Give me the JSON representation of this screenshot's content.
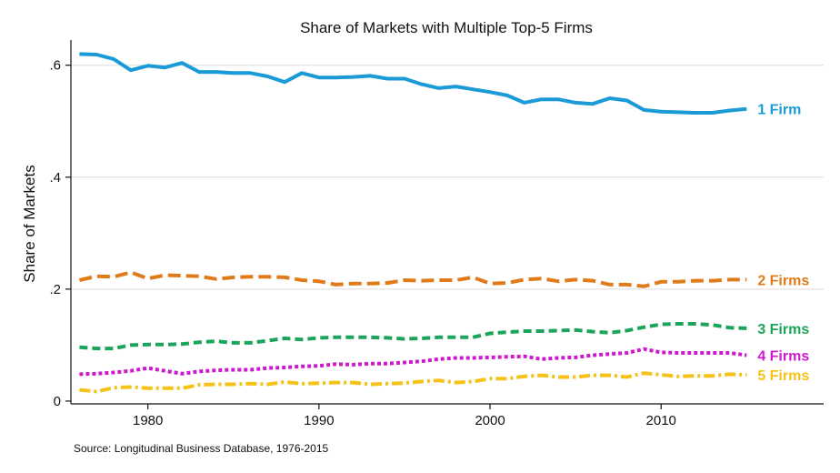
{
  "chart_data": {
    "type": "line",
    "title": "Share of Markets with Multiple Top-5 Firms",
    "xlabel": "",
    "ylabel": "Share of Markets",
    "xlim": [
      1975.5,
      2019.5
    ],
    "ylim": [
      -0.005,
      0.645
    ],
    "xticks": [
      1980,
      1990,
      2000,
      2010
    ],
    "xtick_labels": [
      "1980",
      "1990",
      "2000",
      "2010"
    ],
    "yticks": [
      0,
      0.2,
      0.4,
      0.6
    ],
    "ytick_labels": [
      "0",
      ".2",
      ".4",
      ".6"
    ],
    "grid": "horizontal",
    "x": [
      1976,
      1977,
      1978,
      1979,
      1980,
      1981,
      1982,
      1983,
      1984,
      1985,
      1986,
      1987,
      1988,
      1989,
      1990,
      1991,
      1992,
      1993,
      1994,
      1995,
      1996,
      1997,
      1998,
      1999,
      2000,
      2001,
      2002,
      2003,
      2004,
      2005,
      2006,
      2007,
      2008,
      2009,
      2010,
      2011,
      2012,
      2013,
      2014,
      2015
    ],
    "series": [
      {
        "name": "1 Firm",
        "color": "#1a9ad6",
        "dash": "solid",
        "values": [
          0.62,
          0.619,
          0.611,
          0.591,
          0.599,
          0.596,
          0.604,
          0.588,
          0.588,
          0.586,
          0.586,
          0.58,
          0.57,
          0.586,
          0.578,
          0.578,
          0.579,
          0.581,
          0.576,
          0.576,
          0.566,
          0.559,
          0.562,
          0.557,
          0.552,
          0.546,
          0.533,
          0.539,
          0.539,
          0.533,
          0.531,
          0.541,
          0.537,
          0.52,
          0.517,
          0.516,
          0.515,
          0.515,
          0.519,
          0.522
        ]
      },
      {
        "name": "2 Firms",
        "color": "#e07b1a",
        "dash": "long",
        "values": [
          0.216,
          0.223,
          0.222,
          0.23,
          0.219,
          0.225,
          0.224,
          0.223,
          0.218,
          0.221,
          0.222,
          0.222,
          0.221,
          0.216,
          0.214,
          0.208,
          0.21,
          0.21,
          0.211,
          0.216,
          0.215,
          0.216,
          0.216,
          0.221,
          0.21,
          0.211,
          0.217,
          0.219,
          0.214,
          0.217,
          0.215,
          0.208,
          0.208,
          0.205,
          0.213,
          0.213,
          0.215,
          0.215,
          0.217,
          0.217
        ]
      },
      {
        "name": "3 Firms",
        "color": "#1aa55a",
        "dash": "medium",
        "values": [
          0.096,
          0.094,
          0.094,
          0.1,
          0.101,
          0.101,
          0.102,
          0.105,
          0.107,
          0.104,
          0.104,
          0.108,
          0.112,
          0.11,
          0.113,
          0.114,
          0.114,
          0.114,
          0.113,
          0.111,
          0.112,
          0.114,
          0.114,
          0.114,
          0.121,
          0.123,
          0.125,
          0.125,
          0.126,
          0.127,
          0.124,
          0.122,
          0.126,
          0.132,
          0.137,
          0.138,
          0.138,
          0.136,
          0.131,
          0.13
        ]
      },
      {
        "name": "4 Firms",
        "color": "#cc1acc",
        "dash": "dot",
        "values": [
          0.048,
          0.049,
          0.051,
          0.054,
          0.059,
          0.054,
          0.049,
          0.053,
          0.055,
          0.056,
          0.056,
          0.059,
          0.06,
          0.062,
          0.063,
          0.066,
          0.065,
          0.067,
          0.067,
          0.069,
          0.071,
          0.075,
          0.077,
          0.077,
          0.078,
          0.079,
          0.08,
          0.075,
          0.077,
          0.078,
          0.082,
          0.084,
          0.086,
          0.093,
          0.087,
          0.086,
          0.086,
          0.086,
          0.086,
          0.082
        ]
      },
      {
        "name": "5 Firms",
        "color": "#f5c218",
        "dash": "dashdot",
        "values": [
          0.02,
          0.017,
          0.024,
          0.025,
          0.023,
          0.023,
          0.023,
          0.029,
          0.03,
          0.03,
          0.031,
          0.03,
          0.034,
          0.031,
          0.032,
          0.033,
          0.033,
          0.03,
          0.031,
          0.032,
          0.035,
          0.037,
          0.033,
          0.035,
          0.04,
          0.04,
          0.044,
          0.046,
          0.043,
          0.043,
          0.046,
          0.046,
          0.043,
          0.05,
          0.047,
          0.044,
          0.045,
          0.045,
          0.048,
          0.047
        ]
      }
    ]
  },
  "source": "Source: Longitudinal Business Database, 1976-2015"
}
